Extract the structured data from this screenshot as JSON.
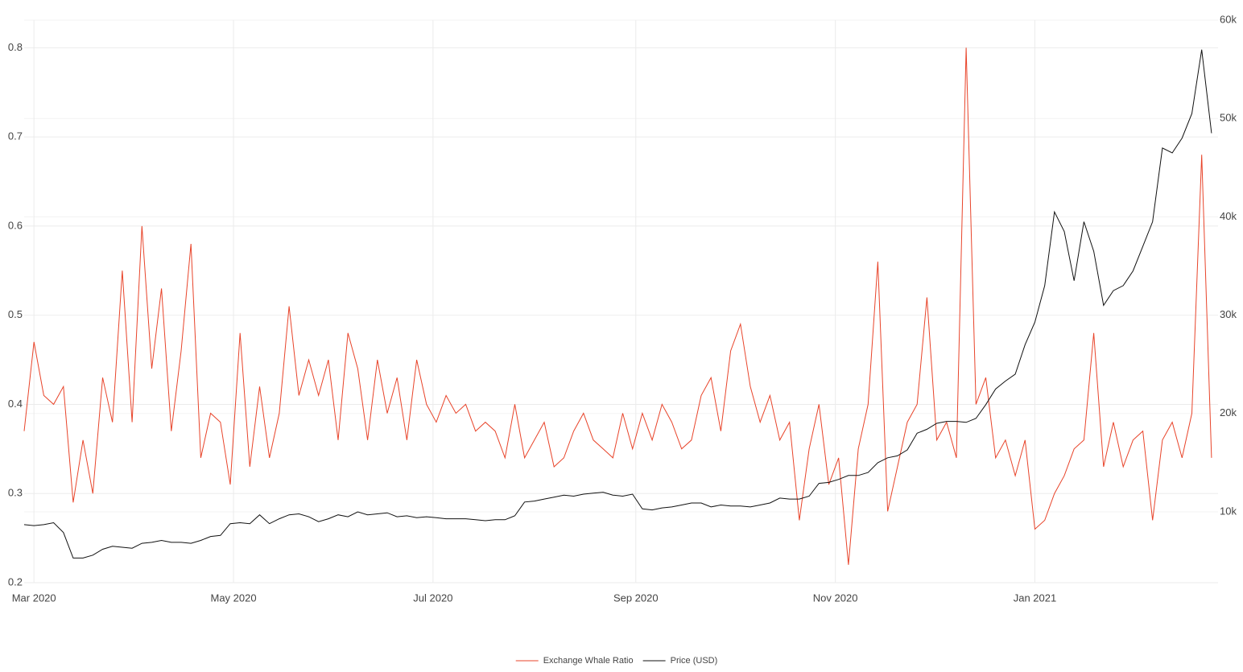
{
  "chart_data": {
    "type": "line",
    "legend": "bottom",
    "grid": true,
    "x": [
      -3,
      0,
      3,
      6,
      9,
      12,
      15,
      18,
      21,
      24,
      27,
      30,
      33,
      36,
      39,
      42,
      45,
      48,
      51,
      54,
      57,
      60,
      63,
      66,
      69,
      72,
      75,
      78,
      81,
      84,
      87,
      90,
      93,
      96,
      99,
      102,
      105,
      108,
      111,
      114,
      117,
      120,
      123,
      126,
      129,
      132,
      135,
      138,
      141,
      144,
      147,
      150,
      153,
      156,
      159,
      162,
      165,
      168,
      171,
      174,
      177,
      180,
      183,
      186,
      189,
      192,
      195,
      198,
      201,
      204,
      207,
      210,
      213,
      216,
      219,
      222,
      225,
      228,
      231,
      234,
      237,
      240,
      243,
      246,
      249,
      252,
      255,
      258,
      261,
      264,
      267,
      270,
      273,
      276,
      279,
      282,
      285,
      288,
      291,
      294,
      297,
      300,
      303,
      306,
      309,
      312,
      315,
      318,
      321,
      324,
      327,
      330,
      333,
      336,
      339,
      342,
      345,
      348,
      351,
      354,
      357,
      360
    ],
    "xlim": [
      -3,
      362
    ],
    "xticks": [
      {
        "value": 0,
        "label": "Mar 2020"
      },
      {
        "value": 61,
        "label": "May 2020"
      },
      {
        "value": 122,
        "label": "Jul 2020"
      },
      {
        "value": 184,
        "label": "Sep 2020"
      },
      {
        "value": 245,
        "label": "Nov 2020"
      },
      {
        "value": 306,
        "label": "Jan 2021"
      }
    ],
    "ylim": [
      0.2,
      0.831
    ],
    "yticks": [
      0.2,
      0.3,
      0.4,
      0.5,
      0.6,
      0.7,
      0.8
    ],
    "y2lim": [
      2800,
      60000
    ],
    "y2ticks": [
      {
        "value": 10000,
        "label": "10k"
      },
      {
        "value": 20000,
        "label": "20k"
      },
      {
        "value": 30000,
        "label": "30k"
      },
      {
        "value": 40000,
        "label": "40k"
      },
      {
        "value": 50000,
        "label": "50k"
      },
      {
        "value": 60000,
        "label": "60k"
      }
    ],
    "series": [
      {
        "name": "Exchange Whale Ratio",
        "color": "#e8442a",
        "values": [
          0.37,
          0.47,
          0.41,
          0.4,
          0.42,
          0.29,
          0.36,
          0.3,
          0.43,
          0.38,
          0.55,
          0.38,
          0.6,
          0.44,
          0.53,
          0.37,
          0.46,
          0.58,
          0.34,
          0.39,
          0.38,
          0.31,
          0.48,
          0.33,
          0.42,
          0.34,
          0.39,
          0.51,
          0.41,
          0.45,
          0.41,
          0.45,
          0.36,
          0.48,
          0.44,
          0.36,
          0.45,
          0.39,
          0.43,
          0.36,
          0.45,
          0.4,
          0.38,
          0.41,
          0.39,
          0.4,
          0.37,
          0.38,
          0.37,
          0.34,
          0.4,
          0.34,
          0.36,
          0.38,
          0.33,
          0.34,
          0.37,
          0.39,
          0.36,
          0.35,
          0.34,
          0.39,
          0.35,
          0.39,
          0.36,
          0.4,
          0.38,
          0.35,
          0.36,
          0.41,
          0.43,
          0.37,
          0.46,
          0.49,
          0.42,
          0.38,
          0.41,
          0.36,
          0.38,
          0.27,
          0.35,
          0.4,
          0.31,
          0.34,
          0.22,
          0.35,
          0.4,
          0.56,
          0.28,
          0.33,
          0.38,
          0.4,
          0.52,
          0.36,
          0.38,
          0.34,
          0.8,
          0.4,
          0.43,
          0.34,
          0.36,
          0.32,
          0.36,
          0.26,
          0.27,
          0.3,
          0.32,
          0.35,
          0.36,
          0.48,
          0.33,
          0.38,
          0.33,
          0.36,
          0.37,
          0.27,
          0.36,
          0.38,
          0.34,
          0.39,
          0.68,
          0.34
        ]
      },
      {
        "name": "Price (USD)",
        "color": "#111111",
        "axis": "y2",
        "values": [
          8700,
          8600,
          8700,
          8900,
          7900,
          5300,
          5300,
          5600,
          6200,
          6500,
          6400,
          6300,
          6800,
          6900,
          7100,
          6900,
          6900,
          6800,
          7100,
          7500,
          7600,
          8800,
          8900,
          8800,
          9700,
          8800,
          9300,
          9700,
          9800,
          9500,
          9000,
          9300,
          9700,
          9500,
          10000,
          9700,
          9800,
          9900,
          9500,
          9600,
          9400,
          9500,
          9400,
          9300,
          9300,
          9300,
          9200,
          9100,
          9200,
          9200,
          9600,
          11000,
          11100,
          11300,
          11500,
          11700,
          11600,
          11800,
          11900,
          12000,
          11700,
          11600,
          11800,
          10300,
          10200,
          10400,
          10500,
          10700,
          10900,
          10900,
          10500,
          10700,
          10600,
          10600,
          10500,
          10700,
          10900,
          11400,
          11300,
          11300,
          11600,
          12900,
          13000,
          13300,
          13700,
          13700,
          14000,
          15000,
          15500,
          15700,
          16300,
          18000,
          18400,
          19000,
          19200,
          19200,
          19100,
          19500,
          20900,
          22500,
          23300,
          24000,
          27000,
          29300,
          33000,
          40500,
          38500,
          33500,
          39500,
          36500,
          31000,
          32500,
          33000,
          34500,
          37000,
          39500,
          47000,
          46500,
          48000,
          50500,
          57000,
          48500
        ]
      }
    ]
  }
}
